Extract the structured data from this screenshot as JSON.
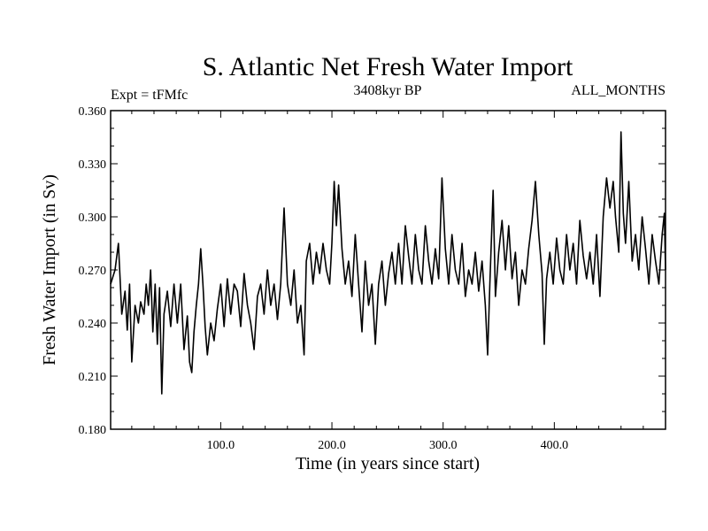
{
  "chart_data": {
    "type": "line",
    "title": "S. Atlantic Net Fresh Water Import",
    "subtitle_left": "Expt = tFMfc",
    "subtitle_center": "3408kyr BP",
    "subtitle_right": "ALL_MONTHS",
    "xlabel": "Time (in years since start)",
    "ylabel": "Fresh Water Import (in Sv)",
    "xlim": [
      1,
      500
    ],
    "ylim": [
      0.18,
      0.36
    ],
    "x_ticks": [
      100,
      200,
      300,
      400
    ],
    "x_tick_labels": [
      "100.0",
      "200.0",
      "300.0",
      "400.0"
    ],
    "y_ticks": [
      0.18,
      0.21,
      0.24,
      0.27,
      0.3,
      0.33,
      0.36
    ],
    "y_tick_labels": [
      "0.180",
      "0.210",
      "0.240",
      "0.270",
      "0.300",
      "0.330",
      "0.360"
    ],
    "grid": false,
    "series": [
      {
        "name": "Fresh Water Import",
        "points": [
          [
            1,
            0.262
          ],
          [
            5,
            0.27
          ],
          [
            8,
            0.285
          ],
          [
            11,
            0.245
          ],
          [
            14,
            0.258
          ],
          [
            16,
            0.236
          ],
          [
            18,
            0.262
          ],
          [
            20,
            0.218
          ],
          [
            23,
            0.25
          ],
          [
            26,
            0.24
          ],
          [
            28,
            0.252
          ],
          [
            31,
            0.245
          ],
          [
            33,
            0.262
          ],
          [
            35,
            0.25
          ],
          [
            37,
            0.27
          ],
          [
            39,
            0.235
          ],
          [
            41,
            0.262
          ],
          [
            43,
            0.228
          ],
          [
            45,
            0.26
          ],
          [
            47,
            0.2
          ],
          [
            49,
            0.245
          ],
          [
            52,
            0.258
          ],
          [
            55,
            0.238
          ],
          [
            58,
            0.262
          ],
          [
            61,
            0.24
          ],
          [
            64,
            0.262
          ],
          [
            67,
            0.225
          ],
          [
            70,
            0.244
          ],
          [
            72,
            0.218
          ],
          [
            74,
            0.212
          ],
          [
            76,
            0.235
          ],
          [
            78,
            0.25
          ],
          [
            80,
            0.262
          ],
          [
            82,
            0.282
          ],
          [
            84,
            0.262
          ],
          [
            86,
            0.238
          ],
          [
            88,
            0.222
          ],
          [
            91,
            0.24
          ],
          [
            94,
            0.23
          ],
          [
            97,
            0.248
          ],
          [
            100,
            0.262
          ],
          [
            103,
            0.238
          ],
          [
            106,
            0.265
          ],
          [
            109,
            0.245
          ],
          [
            112,
            0.262
          ],
          [
            115,
            0.258
          ],
          [
            118,
            0.238
          ],
          [
            121,
            0.268
          ],
          [
            124,
            0.25
          ],
          [
            127,
            0.24
          ],
          [
            130,
            0.225
          ],
          [
            133,
            0.255
          ],
          [
            136,
            0.262
          ],
          [
            139,
            0.245
          ],
          [
            142,
            0.27
          ],
          [
            145,
            0.25
          ],
          [
            148,
            0.262
          ],
          [
            151,
            0.242
          ],
          [
            154,
            0.262
          ],
          [
            157,
            0.305
          ],
          [
            160,
            0.262
          ],
          [
            163,
            0.25
          ],
          [
            166,
            0.27
          ],
          [
            169,
            0.24
          ],
          [
            172,
            0.25
          ],
          [
            175,
            0.222
          ],
          [
            177,
            0.275
          ],
          [
            180,
            0.285
          ],
          [
            183,
            0.262
          ],
          [
            186,
            0.28
          ],
          [
            189,
            0.268
          ],
          [
            192,
            0.285
          ],
          [
            195,
            0.27
          ],
          [
            198,
            0.262
          ],
          [
            200,
            0.285
          ],
          [
            202,
            0.32
          ],
          [
            204,
            0.295
          ],
          [
            206,
            0.318
          ],
          [
            209,
            0.282
          ],
          [
            212,
            0.262
          ],
          [
            215,
            0.275
          ],
          [
            218,
            0.255
          ],
          [
            221,
            0.29
          ],
          [
            224,
            0.262
          ],
          [
            227,
            0.235
          ],
          [
            230,
            0.275
          ],
          [
            233,
            0.25
          ],
          [
            236,
            0.262
          ],
          [
            239,
            0.228
          ],
          [
            242,
            0.262
          ],
          [
            245,
            0.275
          ],
          [
            248,
            0.25
          ],
          [
            251,
            0.268
          ],
          [
            254,
            0.28
          ],
          [
            257,
            0.262
          ],
          [
            260,
            0.285
          ],
          [
            263,
            0.262
          ],
          [
            266,
            0.295
          ],
          [
            269,
            0.278
          ],
          [
            272,
            0.262
          ],
          [
            275,
            0.29
          ],
          [
            278,
            0.27
          ],
          [
            281,
            0.262
          ],
          [
            284,
            0.295
          ],
          [
            287,
            0.275
          ],
          [
            290,
            0.262
          ],
          [
            293,
            0.282
          ],
          [
            296,
            0.265
          ],
          [
            299,
            0.322
          ],
          [
            302,
            0.282
          ],
          [
            305,
            0.262
          ],
          [
            308,
            0.29
          ],
          [
            311,
            0.27
          ],
          [
            314,
            0.262
          ],
          [
            317,
            0.285
          ],
          [
            320,
            0.255
          ],
          [
            323,
            0.27
          ],
          [
            326,
            0.262
          ],
          [
            329,
            0.28
          ],
          [
            332,
            0.258
          ],
          [
            335,
            0.275
          ],
          [
            338,
            0.25
          ],
          [
            340,
            0.222
          ],
          [
            342,
            0.262
          ],
          [
            345,
            0.315
          ],
          [
            347,
            0.255
          ],
          [
            350,
            0.28
          ],
          [
            353,
            0.298
          ],
          [
            356,
            0.27
          ],
          [
            359,
            0.295
          ],
          [
            362,
            0.265
          ],
          [
            365,
            0.28
          ],
          [
            368,
            0.25
          ],
          [
            371,
            0.27
          ],
          [
            374,
            0.262
          ],
          [
            377,
            0.282
          ],
          [
            380,
            0.298
          ],
          [
            383,
            0.32
          ],
          [
            386,
            0.29
          ],
          [
            389,
            0.268
          ],
          [
            391,
            0.228
          ],
          [
            393,
            0.265
          ],
          [
            396,
            0.28
          ],
          [
            399,
            0.262
          ],
          [
            402,
            0.288
          ],
          [
            405,
            0.27
          ],
          [
            408,
            0.262
          ],
          [
            411,
            0.29
          ],
          [
            414,
            0.27
          ],
          [
            417,
            0.285
          ],
          [
            420,
            0.262
          ],
          [
            423,
            0.298
          ],
          [
            426,
            0.278
          ],
          [
            429,
            0.265
          ],
          [
            432,
            0.28
          ],
          [
            435,
            0.262
          ],
          [
            438,
            0.29
          ],
          [
            441,
            0.255
          ],
          [
            444,
            0.3
          ],
          [
            447,
            0.322
          ],
          [
            450,
            0.305
          ],
          [
            453,
            0.32
          ],
          [
            455,
            0.3
          ],
          [
            458,
            0.28
          ],
          [
            460,
            0.348
          ],
          [
            462,
            0.302
          ],
          [
            464,
            0.285
          ],
          [
            467,
            0.32
          ],
          [
            470,
            0.275
          ],
          [
            473,
            0.29
          ],
          [
            476,
            0.27
          ],
          [
            479,
            0.3
          ],
          [
            482,
            0.282
          ],
          [
            485,
            0.262
          ],
          [
            488,
            0.29
          ],
          [
            491,
            0.275
          ],
          [
            494,
            0.262
          ],
          [
            497,
            0.29
          ],
          [
            499,
            0.302
          ],
          [
            500,
            0.27
          ]
        ]
      }
    ]
  }
}
